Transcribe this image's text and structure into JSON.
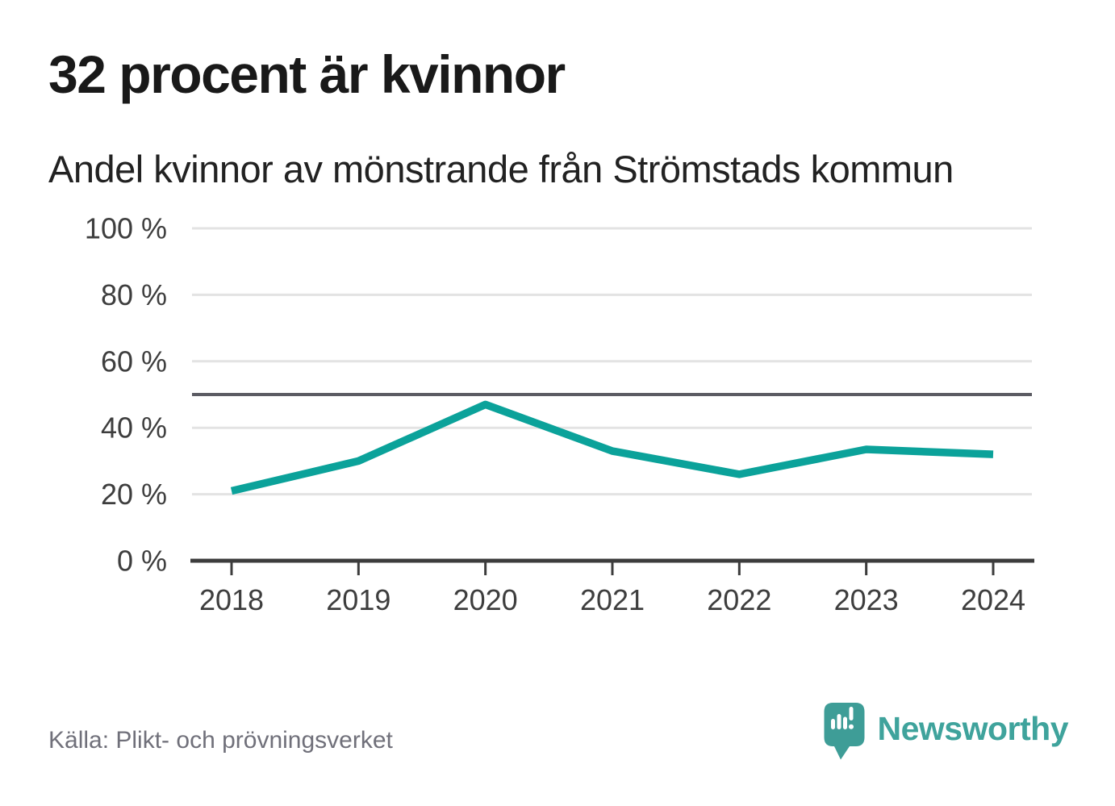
{
  "header": {
    "title": "32 procent är kvinnor",
    "subtitle": "Andel kvinnor av mönstrande från Strömstads kommun"
  },
  "chart_data": {
    "type": "line",
    "title": "32 procent är kvinnor",
    "subtitle": "Andel kvinnor av mönstrande från Strömstads kommun",
    "x": [
      "2018",
      "2019",
      "2020",
      "2021",
      "2022",
      "2023",
      "2024"
    ],
    "series": [
      {
        "name": "Andel kvinnor av mönstrande",
        "values": [
          21,
          30,
          47,
          33,
          26,
          33.5,
          32
        ]
      }
    ],
    "unit": "%",
    "ylim": [
      0,
      100
    ],
    "yticks": [
      0,
      20,
      40,
      60,
      80,
      100
    ],
    "ytick_labels": [
      "0 %",
      "20 %",
      "40 %",
      "60 %",
      "80 %",
      "100 %"
    ],
    "reference_line": 50,
    "grid": true,
    "legend": "none",
    "colors": {
      "line": "#0ba29a",
      "reference": "#5b5b63",
      "grid": "#e3e3e3",
      "axis": "#3c3c3c",
      "tick_label": "#3e3e3e"
    }
  },
  "footer": {
    "source": "Källa: Plikt- och prövningsverket",
    "brand": {
      "name": "Newsworthy",
      "color": "#3fa39c",
      "icon": "newsworthy-speech-bubble-chart-icon"
    }
  }
}
